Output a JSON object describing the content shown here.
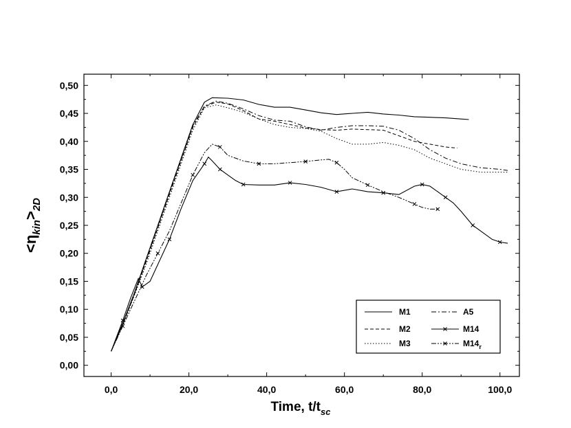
{
  "chart_data": {
    "type": "line",
    "xlabel": "Time, t/t",
    "xlabel_sub": "sc",
    "ylabel": "<η",
    "ylabel_sub": "kin",
    "ylabel_close": ">",
    "ylabel_close_sub": "2D",
    "xlim": [
      -7,
      105
    ],
    "ylim": [
      -0.02,
      0.52
    ],
    "xticks": [
      0,
      20,
      40,
      60,
      80,
      100
    ],
    "xtick_labels": [
      "0,0",
      "20,0",
      "40,0",
      "60,0",
      "80,0",
      "100,0"
    ],
    "yticks": [
      0.0,
      0.05,
      0.1,
      0.15,
      0.2,
      0.25,
      0.3,
      0.35,
      0.4,
      0.45,
      0.5
    ],
    "ytick_labels": [
      "0,00",
      "0,05",
      "0,10",
      "0,15",
      "0,20",
      "0,25",
      "0,30",
      "0,35",
      "0,40",
      "0,45",
      "0,50"
    ],
    "legend_position": "bottom-right",
    "series": [
      {
        "name": "M1",
        "style": "solid",
        "marker": "none",
        "x": [
          0,
          3,
          6,
          9,
          12,
          15,
          18,
          21,
          24,
          26,
          30,
          34,
          38,
          42,
          46,
          50,
          54,
          58,
          62,
          66,
          70,
          74,
          78,
          82,
          86,
          90,
          92
        ],
        "y": [
          0.025,
          0.075,
          0.13,
          0.19,
          0.25,
          0.31,
          0.37,
          0.43,
          0.47,
          0.478,
          0.477,
          0.474,
          0.466,
          0.461,
          0.461,
          0.456,
          0.451,
          0.448,
          0.45,
          0.452,
          0.449,
          0.447,
          0.444,
          0.443,
          0.442,
          0.44,
          0.439
        ]
      },
      {
        "name": "M2",
        "style": "dash",
        "marker": "none",
        "x": [
          0,
          3,
          6,
          9,
          12,
          15,
          18,
          21,
          24,
          27,
          30,
          34,
          38,
          42,
          46,
          50,
          54,
          58,
          62,
          66,
          70,
          74,
          78,
          82,
          86,
          89
        ],
        "y": [
          0.025,
          0.073,
          0.127,
          0.185,
          0.245,
          0.305,
          0.365,
          0.425,
          0.462,
          0.47,
          0.467,
          0.455,
          0.44,
          0.436,
          0.43,
          0.424,
          0.421,
          0.42,
          0.422,
          0.421,
          0.42,
          0.41,
          0.4,
          0.395,
          0.39,
          0.388
        ]
      },
      {
        "name": "M3",
        "style": "dot",
        "marker": "none",
        "x": [
          0,
          3,
          6,
          9,
          12,
          15,
          18,
          21,
          24,
          27,
          30,
          34,
          38,
          42,
          46,
          50,
          54,
          58,
          62,
          66,
          70,
          74,
          78,
          82,
          86,
          90,
          95,
          100,
          102
        ],
        "y": [
          0.025,
          0.072,
          0.125,
          0.18,
          0.24,
          0.3,
          0.36,
          0.42,
          0.46,
          0.465,
          0.46,
          0.452,
          0.44,
          0.43,
          0.425,
          0.423,
          0.418,
          0.405,
          0.395,
          0.395,
          0.398,
          0.393,
          0.385,
          0.37,
          0.36,
          0.35,
          0.345,
          0.345,
          0.345
        ]
      },
      {
        "name": "A5",
        "style": "dashdot",
        "marker": "none",
        "x": [
          0,
          3,
          6,
          9,
          12,
          15,
          18,
          21,
          24,
          27,
          30,
          34,
          38,
          42,
          46,
          50,
          54,
          58,
          62,
          66,
          70,
          74,
          78,
          82,
          86,
          90,
          95,
          100,
          102
        ],
        "y": [
          0.025,
          0.074,
          0.128,
          0.187,
          0.248,
          0.308,
          0.368,
          0.428,
          0.463,
          0.472,
          0.468,
          0.458,
          0.446,
          0.438,
          0.436,
          0.426,
          0.42,
          0.425,
          0.428,
          0.428,
          0.427,
          0.42,
          0.405,
          0.385,
          0.37,
          0.36,
          0.353,
          0.35,
          0.348
        ]
      },
      {
        "name": "M14",
        "style": "solid",
        "marker": "tick",
        "x": [
          0,
          3,
          5,
          7,
          8,
          10,
          12,
          15,
          18,
          21,
          24,
          25,
          26,
          28,
          30,
          32,
          34,
          38,
          42,
          46,
          50,
          54,
          58,
          62,
          66,
          70,
          74,
          78,
          80,
          82,
          84,
          86,
          88,
          90,
          93,
          96,
          98,
          100,
          102
        ],
        "y": [
          0.025,
          0.08,
          0.12,
          0.155,
          0.14,
          0.15,
          0.18,
          0.225,
          0.28,
          0.33,
          0.36,
          0.372,
          0.365,
          0.35,
          0.34,
          0.33,
          0.323,
          0.322,
          0.322,
          0.326,
          0.323,
          0.318,
          0.31,
          0.315,
          0.31,
          0.308,
          0.305,
          0.32,
          0.323,
          0.32,
          0.31,
          0.3,
          0.29,
          0.275,
          0.25,
          0.235,
          0.225,
          0.22,
          0.218
        ]
      },
      {
        "name": "M14r",
        "style": "dashdotdot",
        "marker": "tick",
        "x": [
          0,
          3,
          6,
          9,
          12,
          15,
          18,
          21,
          24,
          26,
          28,
          30,
          34,
          38,
          42,
          46,
          50,
          54,
          56,
          58,
          60,
          62,
          66,
          70,
          74,
          78,
          80,
          82,
          84
        ],
        "y": [
          0.025,
          0.07,
          0.115,
          0.16,
          0.2,
          0.24,
          0.29,
          0.34,
          0.38,
          0.395,
          0.39,
          0.375,
          0.365,
          0.36,
          0.36,
          0.362,
          0.364,
          0.367,
          0.368,
          0.362,
          0.35,
          0.335,
          0.322,
          0.31,
          0.3,
          0.288,
          0.282,
          0.279,
          0.279
        ]
      }
    ]
  },
  "legend": {
    "items": [
      {
        "label": "M1",
        "sub": "",
        "series_index": 0
      },
      {
        "label": "A5",
        "sub": "",
        "series_index": 3
      },
      {
        "label": "M2",
        "sub": "",
        "series_index": 1
      },
      {
        "label": "M14",
        "sub": "",
        "series_index": 4
      },
      {
        "label": "M3",
        "sub": "",
        "series_index": 2
      },
      {
        "label": "M14",
        "sub": "r",
        "series_index": 5
      }
    ]
  }
}
